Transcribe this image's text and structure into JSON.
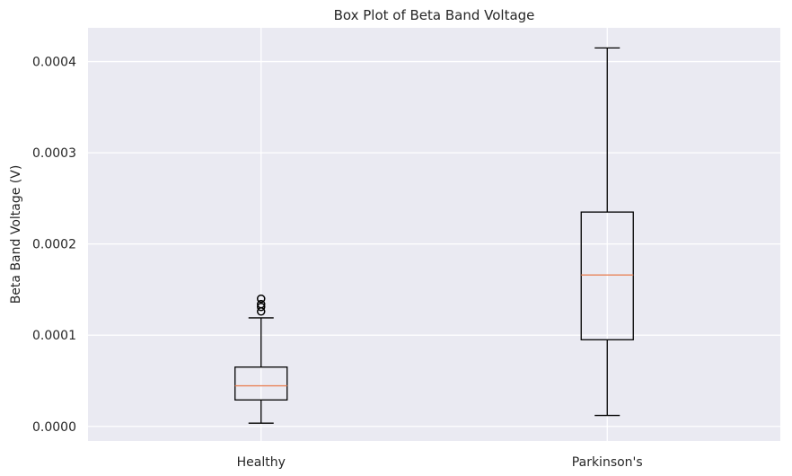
{
  "chart_data": {
    "type": "box",
    "title": "Box Plot of Beta Band Voltage",
    "xlabel": "",
    "ylabel": "Beta Band Voltage (V)",
    "ylim": [
      -1.6e-05,
      0.000437
    ],
    "yticks": [
      0.0,
      0.0001,
      0.0002,
      0.0003,
      0.0004
    ],
    "ytick_labels": [
      "0.0000",
      "0.0001",
      "0.0002",
      "0.0003",
      "0.0004"
    ],
    "categories": [
      "Healthy",
      "Parkinson's"
    ],
    "boxes": [
      {
        "category": "Healthy",
        "whisker_low": 3.5e-06,
        "q1": 2.9e-05,
        "median": 4.45e-05,
        "q3": 6.5e-05,
        "whisker_high": 0.000119,
        "outliers": [
          0.000126,
          0.000131,
          0.000134,
          0.00014
        ]
      },
      {
        "category": "Parkinson's",
        "whisker_low": 1.2e-05,
        "q1": 9.5e-05,
        "median": 0.000166,
        "q3": 0.000235,
        "whisker_high": 0.000415,
        "outliers": []
      }
    ],
    "grid": true,
    "colors": {
      "background": "#EAEAF2",
      "grid": "#FFFFFF",
      "box": "#000000",
      "median": "#E8845A",
      "text": "#262626"
    }
  }
}
